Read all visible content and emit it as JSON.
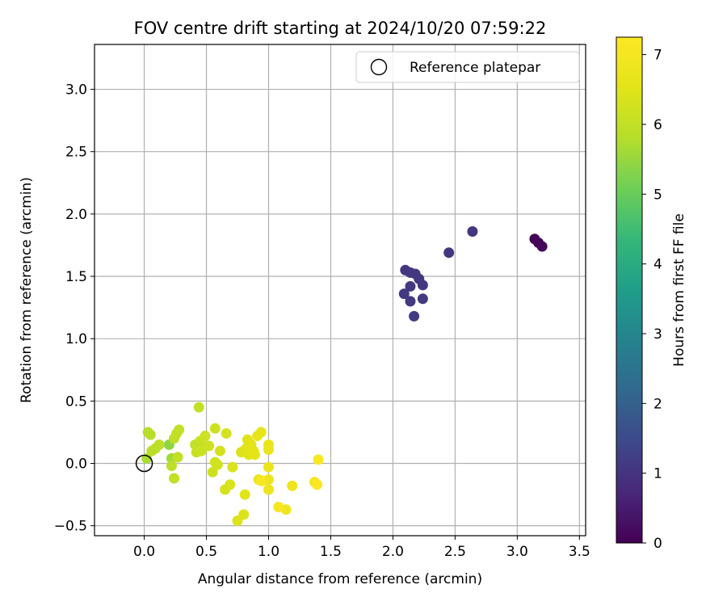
{
  "chart_data": {
    "type": "scatter",
    "title": "FOV centre drift starting at 2024/10/20 07:59:22",
    "xlabel": "Angular distance from reference (arcmin)",
    "ylabel": "Rotation from reference (arcmin)",
    "colorbar_label": "Hours from first FF file",
    "xlim": [
      -0.4,
      3.55
    ],
    "ylim": [
      -0.58,
      3.36
    ],
    "clim": [
      0,
      7.25
    ],
    "x_ticks": [
      "0.0",
      "0.5",
      "1.0",
      "1.5",
      "2.0",
      "2.5",
      "3.0",
      "3.5"
    ],
    "y_ticks": [
      "−0.5",
      "0.0",
      "0.5",
      "1.0",
      "1.5",
      "2.0",
      "2.5",
      "3.0"
    ],
    "colorbar_ticks": [
      "0",
      "1",
      "2",
      "3",
      "4",
      "5",
      "6",
      "7"
    ],
    "grid": true,
    "colormap": "viridis",
    "legend": {
      "position": "top-right",
      "entries": [
        {
          "label": "Reference platepar",
          "marker": "open-circle"
        }
      ]
    },
    "reference_point": {
      "x": 0.0,
      "y": 0.0
    },
    "points": [
      {
        "x": 3.14,
        "y": 1.8,
        "t": 0.05
      },
      {
        "x": 3.17,
        "y": 1.77,
        "t": 0.1
      },
      {
        "x": 3.2,
        "y": 1.74,
        "t": 0.15
      },
      {
        "x": 2.64,
        "y": 1.86,
        "t": 1.0
      },
      {
        "x": 2.45,
        "y": 1.69,
        "t": 1.02
      },
      {
        "x": 2.1,
        "y": 1.55,
        "t": 1.05
      },
      {
        "x": 2.14,
        "y": 1.53,
        "t": 1.05
      },
      {
        "x": 2.18,
        "y": 1.52,
        "t": 1.07
      },
      {
        "x": 2.21,
        "y": 1.48,
        "t": 1.08
      },
      {
        "x": 2.24,
        "y": 1.43,
        "t": 1.08
      },
      {
        "x": 2.14,
        "y": 1.42,
        "t": 1.1
      },
      {
        "x": 2.09,
        "y": 1.36,
        "t": 1.1
      },
      {
        "x": 2.24,
        "y": 1.32,
        "t": 1.12
      },
      {
        "x": 2.14,
        "y": 1.3,
        "t": 1.12
      },
      {
        "x": 2.17,
        "y": 1.18,
        "t": 1.15
      },
      {
        "x": 0.2,
        "y": 0.15,
        "t": 5.4
      },
      {
        "x": 0.22,
        "y": 0.04,
        "t": 5.6
      },
      {
        "x": 0.02,
        "y": 0.04,
        "t": 5.7
      },
      {
        "x": 0.03,
        "y": 0.25,
        "t": 5.8
      },
      {
        "x": 0.05,
        "y": 0.23,
        "t": 5.85
      },
      {
        "x": 0.09,
        "y": 0.12,
        "t": 5.9
      },
      {
        "x": 0.06,
        "y": 0.1,
        "t": 5.9
      },
      {
        "x": 0.12,
        "y": 0.15,
        "t": 5.95
      },
      {
        "x": 0.22,
        "y": -0.02,
        "t": 5.95
      },
      {
        "x": 0.24,
        "y": 0.2,
        "t": 5.95
      },
      {
        "x": 0.27,
        "y": 0.05,
        "t": 6.0
      },
      {
        "x": 0.26,
        "y": 0.24,
        "t": 6.0
      },
      {
        "x": 0.28,
        "y": 0.27,
        "t": 6.0
      },
      {
        "x": 0.24,
        "y": -0.12,
        "t": 6.0
      },
      {
        "x": 0.44,
        "y": 0.45,
        "t": 6.0
      },
      {
        "x": 0.41,
        "y": 0.15,
        "t": 6.0
      },
      {
        "x": 0.42,
        "y": 0.09,
        "t": 6.1
      },
      {
        "x": 0.45,
        "y": 0.18,
        "t": 6.1
      },
      {
        "x": 0.47,
        "y": 0.13,
        "t": 6.1
      },
      {
        "x": 0.49,
        "y": 0.22,
        "t": 6.15
      },
      {
        "x": 0.46,
        "y": 0.1,
        "t": 6.15
      },
      {
        "x": 0.52,
        "y": 0.14,
        "t": 6.2
      },
      {
        "x": 0.57,
        "y": 0.28,
        "t": 6.2
      },
      {
        "x": 0.55,
        "y": -0.07,
        "t": 6.2
      },
      {
        "x": 0.57,
        "y": 0.01,
        "t": 6.25
      },
      {
        "x": 0.59,
        "y": -0.01,
        "t": 6.25
      },
      {
        "x": 0.61,
        "y": 0.1,
        "t": 6.3
      },
      {
        "x": 0.66,
        "y": 0.24,
        "t": 6.3
      },
      {
        "x": 0.65,
        "y": -0.21,
        "t": 6.3
      },
      {
        "x": 0.69,
        "y": -0.17,
        "t": 6.35
      },
      {
        "x": 0.71,
        "y": -0.03,
        "t": 6.4
      },
      {
        "x": 0.75,
        "y": -0.46,
        "t": 6.4
      },
      {
        "x": 0.78,
        "y": 0.09,
        "t": 6.45
      },
      {
        "x": 0.8,
        "y": -0.41,
        "t": 6.45
      },
      {
        "x": 0.82,
        "y": 0.12,
        "t": 6.5
      },
      {
        "x": 0.81,
        "y": -0.25,
        "t": 6.5
      },
      {
        "x": 0.83,
        "y": 0.19,
        "t": 6.5
      },
      {
        "x": 0.84,
        "y": 0.07,
        "t": 6.55
      },
      {
        "x": 0.86,
        "y": 0.15,
        "t": 6.55
      },
      {
        "x": 0.88,
        "y": 0.1,
        "t": 6.6
      },
      {
        "x": 0.89,
        "y": 0.07,
        "t": 6.6
      },
      {
        "x": 0.91,
        "y": 0.22,
        "t": 6.65
      },
      {
        "x": 0.94,
        "y": 0.25,
        "t": 6.65
      },
      {
        "x": 0.92,
        "y": -0.13,
        "t": 6.7
      },
      {
        "x": 0.95,
        "y": -0.14,
        "t": 6.7
      },
      {
        "x": 1.0,
        "y": 0.15,
        "t": 6.7
      },
      {
        "x": 1.0,
        "y": 0.11,
        "t": 6.75
      },
      {
        "x": 1.0,
        "y": -0.03,
        "t": 6.75
      },
      {
        "x": 1.0,
        "y": -0.13,
        "t": 6.8
      },
      {
        "x": 1.0,
        "y": -0.21,
        "t": 6.8
      },
      {
        "x": 1.19,
        "y": -0.18,
        "t": 6.85
      },
      {
        "x": 1.14,
        "y": -0.37,
        "t": 6.9
      },
      {
        "x": 0.94,
        "y": -0.14,
        "t": 7.1
      },
      {
        "x": 1.08,
        "y": -0.35,
        "t": 7.1
      },
      {
        "x": 1.37,
        "y": -0.15,
        "t": 7.05
      },
      {
        "x": 1.39,
        "y": -0.17,
        "t": 7.15
      },
      {
        "x": 1.4,
        "y": 0.03,
        "t": 7.15
      }
    ]
  }
}
